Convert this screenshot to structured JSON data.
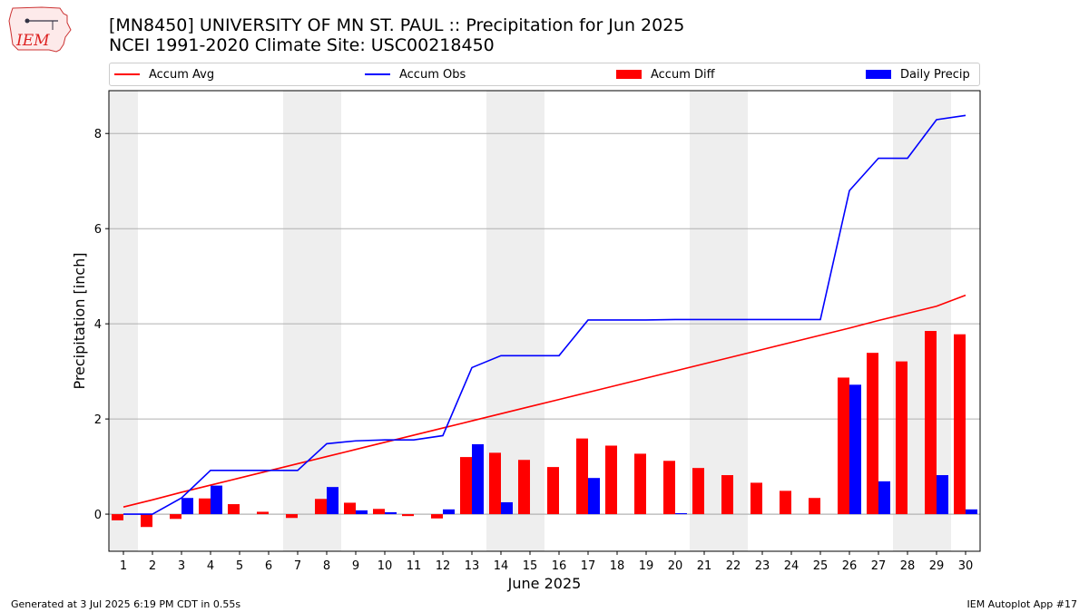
{
  "header": {
    "title": "[MN8450] UNIVERSITY OF MN ST. PAUL :: Precipitation for Jun 2025",
    "subtitle": "NCEI 1991-2020 Climate Site: USC00218450"
  },
  "logo": {
    "text": "IEM",
    "icon": "iem-iowa-logo"
  },
  "colors": {
    "avg": "#ff0000",
    "obs": "#0000ff",
    "diff": "#ff0000",
    "daily": "#0000ff",
    "weekend": "#eeeeee",
    "grid": "#b0b0b0"
  },
  "footer": {
    "left": "Generated at 3 Jul 2025 6:19 PM CDT in 0.55s",
    "right": "IEM Autoplot App #17"
  },
  "chart_data": {
    "type": "bar",
    "xlabel": "June 2025",
    "ylabel": "Precipitation [inch]",
    "ylim": [
      -0.78,
      8.9
    ],
    "yticks": [
      0,
      2,
      4,
      6,
      8
    ],
    "grid": "horizontal",
    "legend_placement": "top",
    "days": [
      1,
      2,
      3,
      4,
      5,
      6,
      7,
      8,
      9,
      10,
      11,
      12,
      13,
      14,
      15,
      16,
      17,
      18,
      19,
      20,
      21,
      22,
      23,
      24,
      25,
      26,
      27,
      28,
      29,
      30
    ],
    "shaded_days": [
      1,
      7,
      8,
      14,
      15,
      21,
      22,
      28,
      29
    ],
    "series": [
      {
        "name": "Accum Avg",
        "kind": "line",
        "values": [
          0.15,
          0.3,
          0.46,
          0.61,
          0.76,
          0.91,
          1.06,
          1.21,
          1.36,
          1.51,
          1.66,
          1.81,
          1.96,
          2.11,
          2.26,
          2.41,
          2.56,
          2.71,
          2.86,
          3.01,
          3.16,
          3.31,
          3.46,
          3.61,
          3.76,
          3.91,
          4.07,
          4.22,
          4.37,
          4.6
        ]
      },
      {
        "name": "Accum Obs",
        "kind": "line",
        "values": [
          0.0,
          0.0,
          0.34,
          0.92,
          0.92,
          0.92,
          0.92,
          1.48,
          1.54,
          1.56,
          1.56,
          1.65,
          3.08,
          3.33,
          3.33,
          3.33,
          4.08,
          4.08,
          4.08,
          4.09,
          4.09,
          4.09,
          4.09,
          4.09,
          4.09,
          6.8,
          7.48,
          7.48,
          8.29,
          8.38
        ]
      },
      {
        "name": "Accum Diff",
        "kind": "bar",
        "values": [
          -0.13,
          -0.27,
          -0.1,
          0.33,
          0.21,
          0.05,
          -0.08,
          0.32,
          0.24,
          0.11,
          -0.04,
          -0.09,
          1.2,
          1.29,
          1.14,
          0.99,
          1.59,
          1.44,
          1.27,
          1.12,
          0.97,
          0.82,
          0.66,
          0.49,
          0.34,
          2.87,
          3.39,
          3.21,
          3.85,
          3.78
        ]
      },
      {
        "name": "Daily Precip",
        "kind": "bar",
        "values": [
          0.0,
          0.0,
          0.34,
          0.6,
          0.0,
          0.0,
          0.0,
          0.57,
          0.08,
          0.04,
          0.0,
          0.1,
          1.47,
          0.25,
          0.0,
          0.0,
          0.76,
          0.0,
          0.0,
          0.02,
          0.0,
          0.0,
          0.0,
          0.0,
          0.0,
          2.72,
          0.69,
          0.0,
          0.82,
          0.1
        ]
      }
    ]
  }
}
